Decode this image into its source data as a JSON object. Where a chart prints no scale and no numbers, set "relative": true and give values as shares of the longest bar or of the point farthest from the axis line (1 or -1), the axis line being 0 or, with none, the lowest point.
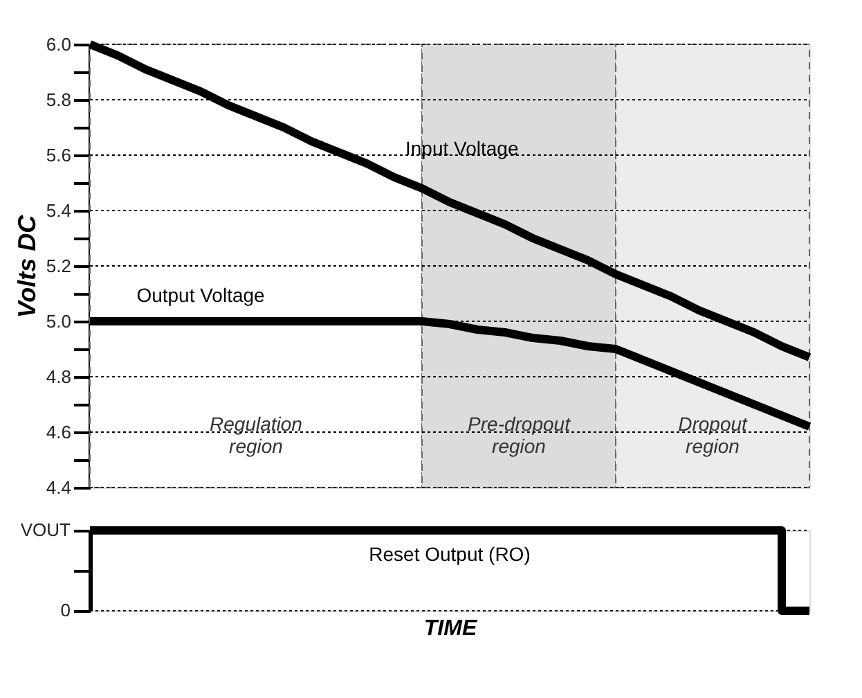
{
  "chart_data": [
    {
      "type": "line",
      "ylabel": "Volts DC",
      "ylim": [
        4.4,
        6.0
      ],
      "categories": [
        null,
        null,
        null,
        null,
        null,
        null,
        null,
        null,
        null,
        null,
        null,
        null,
        null,
        null,
        null,
        null,
        null,
        null,
        null,
        null,
        null,
        null,
        null,
        null,
        null,
        null,
        null
      ],
      "yticks": [
        {
          "value": 4.4,
          "label": "4.4"
        },
        {
          "value": 4.5,
          "label": null
        },
        {
          "value": 4.6,
          "label": "4.6"
        },
        {
          "value": 4.7,
          "label": null
        },
        {
          "value": 4.8,
          "label": "4.8"
        },
        {
          "value": 4.9,
          "label": null
        },
        {
          "value": 5,
          "label": "5.0"
        },
        {
          "value": 5.1,
          "label": null
        },
        {
          "value": 5.2,
          "label": "5.2"
        },
        {
          "value": 5.3,
          "label": null
        },
        {
          "value": 5.4,
          "label": "5.4"
        },
        {
          "value": 5.5,
          "label": null
        },
        {
          "value": 5.6,
          "label": "5.6"
        },
        {
          "value": 5.7,
          "label": null
        },
        {
          "value": 5.8,
          "label": "5.8"
        },
        {
          "value": 5.9,
          "label": null
        },
        {
          "value": 6,
          "label": "6.0"
        }
      ],
      "tick_labels": "y",
      "grid": "y",
      "line_style": "solid",
      "series": [
        {
          "name": "Input Voltage",
          "color": "#000000",
          "values": [
            6.0,
            5.96,
            5.91,
            5.87,
            5.83,
            5.78,
            5.74,
            5.7,
            5.65,
            5.61,
            5.57,
            5.52,
            5.48,
            5.43,
            5.39,
            5.35,
            5.3,
            5.26,
            5.22,
            5.17,
            5.13,
            5.09,
            5.04,
            5.0,
            4.96,
            4.91,
            4.87
          ]
        },
        {
          "name": "Output Voltage",
          "color": "#000000",
          "values": [
            5.0,
            5.0,
            5.0,
            5.0,
            5.0,
            5.0,
            5.0,
            5.0,
            5.0,
            5.0,
            5.0,
            5.0,
            5.0,
            4.99,
            4.97,
            4.96,
            4.94,
            4.93,
            4.91,
            4.9,
            4.86,
            4.82,
            4.78,
            4.74,
            4.7,
            4.66,
            4.62
          ]
        }
      ],
      "annotations": [
        "Regulation\nregion",
        "Pre-dropout\nregion",
        "Dropout\nregion"
      ]
    },
    {
      "type": "step",
      "xlabel": "TIME",
      "relative": true,
      "categories": [
        null,
        null,
        null,
        null,
        null,
        null,
        null,
        null,
        null,
        null,
        null,
        null,
        null,
        null,
        null,
        null,
        null,
        null,
        null,
        null,
        null,
        null,
        null,
        null,
        null,
        null,
        null
      ],
      "tick_labels": "y",
      "grid": "y",
      "line_style": "solid",
      "series": [
        {
          "name": "Reset Output (RO)",
          "color": "#000000",
          "values": [
            1,
            1,
            1,
            1,
            1,
            1,
            1,
            1,
            1,
            1,
            1,
            1,
            1,
            1,
            1,
            1,
            1,
            1,
            1,
            1,
            1,
            1,
            1,
            1,
            1,
            0,
            0
          ]
        }
      ],
      "annotations": [
        "VOUT",
        "0"
      ]
    }
  ]
}
